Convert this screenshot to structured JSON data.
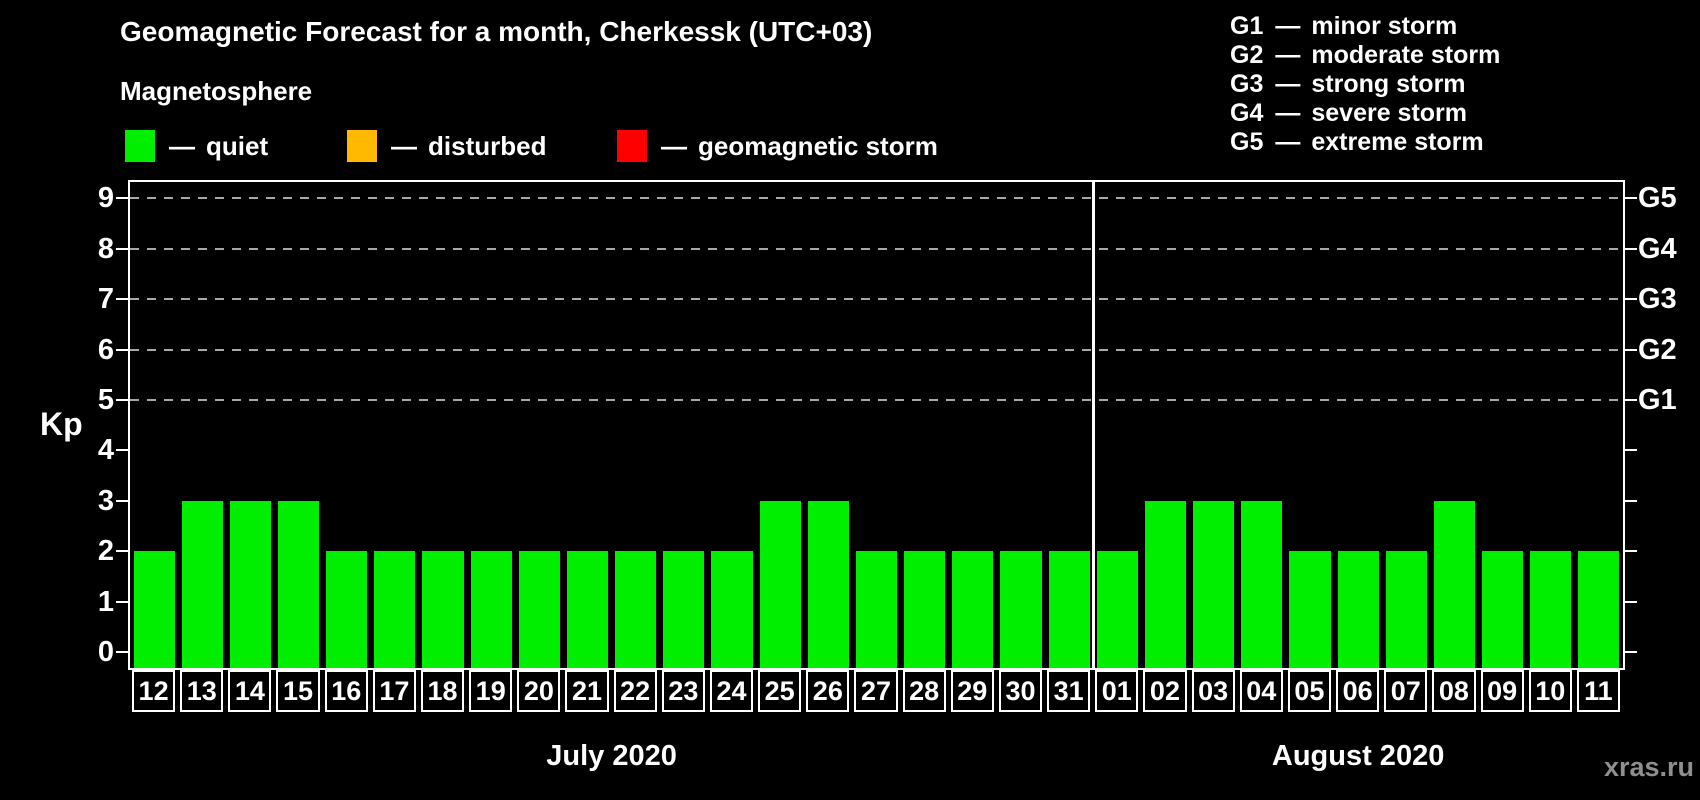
{
  "chart_data": {
    "type": "bar",
    "title": "Geomagnetic Forecast for a month, Cherkessk (UTC+03)",
    "ylabel": "Kp",
    "ylim": [
      0,
      9
    ],
    "yticks": [
      0,
      1,
      2,
      3,
      4,
      5,
      6,
      7,
      8,
      9
    ],
    "gridlines_kp": [
      5,
      6,
      7,
      8,
      9
    ],
    "right_axis": [
      {
        "kp": 5,
        "label": "G1"
      },
      {
        "kp": 6,
        "label": "G2"
      },
      {
        "kp": 7,
        "label": "G3"
      },
      {
        "kp": 8,
        "label": "G4"
      },
      {
        "kp": 9,
        "label": "G5"
      }
    ],
    "months": [
      {
        "label": "July 2020",
        "days": [
          "12",
          "13",
          "14",
          "15",
          "16",
          "17",
          "18",
          "19",
          "20",
          "21",
          "22",
          "23",
          "24",
          "25",
          "26",
          "27",
          "28",
          "29",
          "30",
          "31"
        ],
        "kp": [
          2,
          3,
          3,
          3,
          2,
          2,
          2,
          2,
          2,
          2,
          2,
          2,
          2,
          3,
          3,
          2,
          2,
          2,
          2,
          2
        ]
      },
      {
        "label": "August 2020",
        "days": [
          "01",
          "02",
          "03",
          "04",
          "05",
          "06",
          "07",
          "08",
          "09",
          "10",
          "11"
        ],
        "kp": [
          2,
          3,
          3,
          3,
          2,
          2,
          2,
          3,
          2,
          2,
          2
        ]
      }
    ],
    "grid": "dashed horizontal lines at Kp 5-9",
    "legend_position": "top-left"
  },
  "legend": {
    "heading": "Magnetosphere",
    "dash": "—",
    "items": [
      {
        "label": "quiet",
        "color": "#00ee00"
      },
      {
        "label": "disturbed",
        "color": "#ffb900"
      },
      {
        "label": "geomagnetic storm",
        "color": "#ff0000"
      }
    ]
  },
  "g_legend": {
    "dash": "—",
    "lines": [
      {
        "code": "G1",
        "label": "minor storm"
      },
      {
        "code": "G2",
        "label": "moderate storm"
      },
      {
        "code": "G3",
        "label": "strong storm"
      },
      {
        "code": "G4",
        "label": "severe storm"
      },
      {
        "code": "G5",
        "label": "extreme storm"
      }
    ]
  },
  "watermark": "xras.ru",
  "colors": {
    "background": "#000000",
    "text": "#ffffff",
    "axis": "#ffffff",
    "grid": "#a8a8a8",
    "quiet": "#00ee00",
    "disturbed": "#ffb900",
    "storm": "#ff0000",
    "watermark": "#8f8f8f"
  }
}
